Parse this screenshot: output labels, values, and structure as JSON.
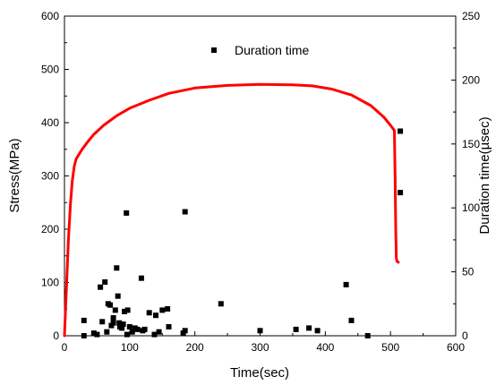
{
  "chart_data": {
    "type": "scatter",
    "xlabel": "Time(sec)",
    "ylabel": "Stress(MPa)",
    "y2label": "Duration time(µsec)",
    "xlim": [
      0,
      600
    ],
    "ylim": [
      0,
      600
    ],
    "y2lim": [
      0,
      250
    ],
    "xticks": [
      0,
      100,
      200,
      300,
      400,
      500,
      600
    ],
    "yticks": [
      0,
      100,
      200,
      300,
      400,
      500,
      600
    ],
    "y2ticks": [
      0,
      50,
      100,
      150,
      200,
      250
    ],
    "grid": false,
    "legend_position": "top-center",
    "series": [
      {
        "role": "line",
        "axis": "left",
        "color": "#ff0000",
        "x": [
          0,
          3,
          6,
          9,
          12,
          15,
          18,
          22,
          27,
          35,
          45,
          60,
          80,
          100,
          130,
          160,
          200,
          250,
          300,
          350,
          380,
          410,
          440,
          470,
          490,
          500,
          503,
          506,
          507,
          508,
          509,
          510,
          512
        ],
        "y": [
          0,
          90,
          180,
          245,
          290,
          318,
          332,
          340,
          350,
          363,
          378,
          395,
          413,
          427,
          442,
          455,
          465,
          470,
          472,
          471,
          469,
          463,
          452,
          432,
          410,
          395,
          390,
          385,
          300,
          200,
          145,
          140,
          138
        ]
      },
      {
        "name": "Duration time",
        "role": "points",
        "axis": "right",
        "marker": "square",
        "color": "#000000",
        "x": [
          30,
          55,
          62,
          67,
          70,
          72,
          75,
          78,
          80,
          82,
          84,
          88,
          90,
          95,
          97,
          100,
          104,
          108,
          112,
          118,
          120,
          123,
          130,
          138,
          145,
          150,
          158,
          160,
          182,
          185,
          240,
          300,
          355,
          375,
          388,
          432,
          440,
          465,
          515,
          515,
          30,
          45,
          50,
          58,
          65,
          75,
          85,
          92,
          96,
          140,
          185
        ],
        "y": [
          12,
          38,
          42,
          25,
          24,
          8,
          10,
          20,
          53,
          31,
          10,
          6,
          9,
          96,
          20,
          7,
          3,
          6,
          5,
          45,
          4,
          5,
          18,
          1,
          3,
          20,
          21,
          7,
          2,
          97,
          25,
          4,
          5,
          6,
          4,
          40,
          12,
          0,
          160,
          112,
          0,
          2,
          1,
          11,
          3,
          14,
          7,
          19,
          1,
          16,
          4
        ]
      }
    ]
  },
  "colors": {
    "stress_line": "#ff0000",
    "markers": "#000000",
    "axes": "#000000"
  }
}
